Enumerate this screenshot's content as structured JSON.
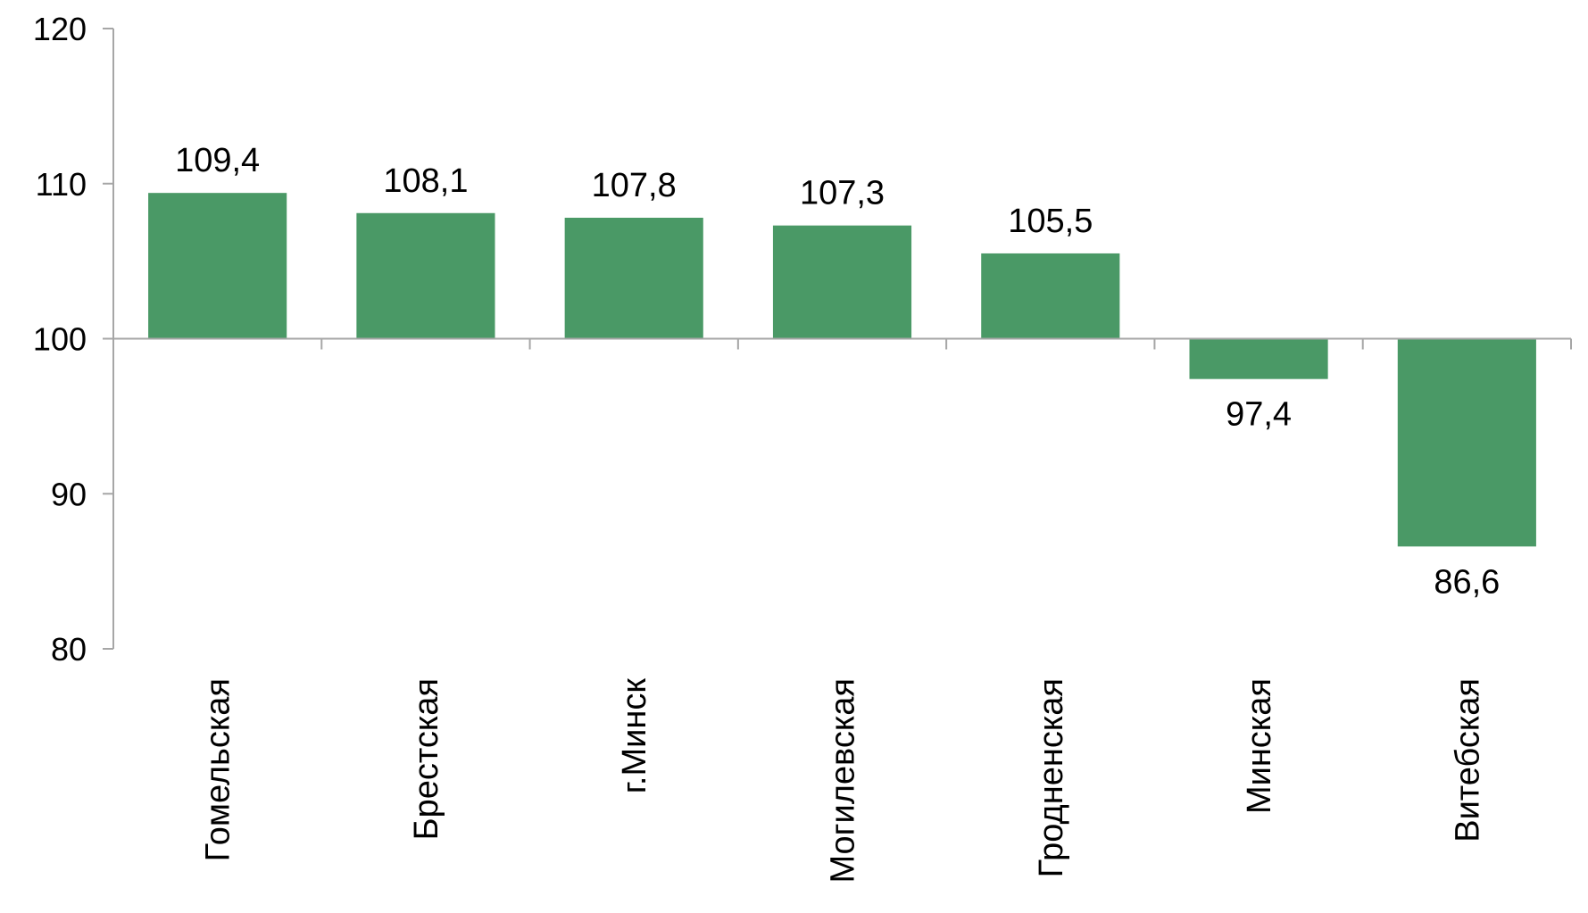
{
  "chart_data": {
    "type": "bar",
    "title": "",
    "xlabel": "",
    "ylabel": "",
    "baseline": 100,
    "ylim": [
      80,
      120
    ],
    "yticks": [
      80,
      90,
      100,
      110,
      120
    ],
    "grid": false,
    "legend": "none",
    "bar_color": "#4a9966",
    "categories": [
      "Гомельская",
      "Брестская",
      "г.Минск",
      "Могилевская",
      "Гродненская",
      "Минская",
      "Витебская"
    ],
    "values": [
      109.4,
      108.1,
      107.8,
      107.3,
      105.5,
      97.4,
      86.6
    ],
    "value_labels": [
      "109,4",
      "108,1",
      "107,8",
      "107,3",
      "105,5",
      "97,4",
      "86,6"
    ]
  }
}
